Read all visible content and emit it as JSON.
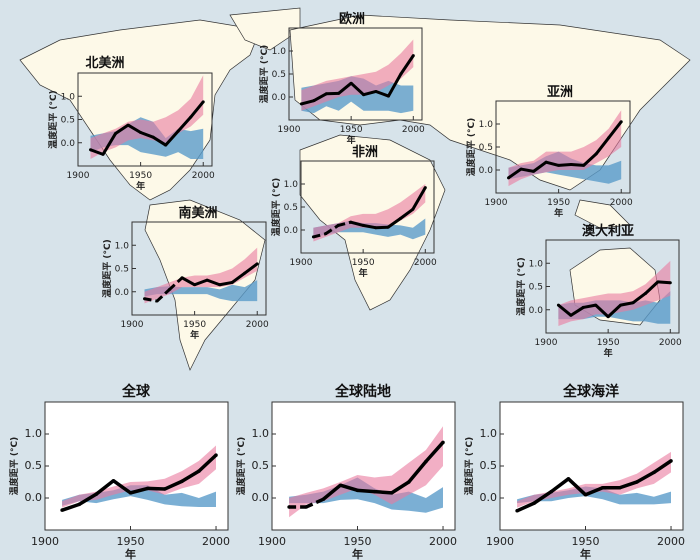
{
  "colors": {
    "ocean": "#d7e3ea",
    "land": "#fdf9e8",
    "observed": "#000000",
    "natural_band": "#5a9bc9",
    "natural_anthropogenic_band": "#e9799f"
  },
  "axis_common": {
    "x_ticks": [
      "1900",
      "1950",
      "2000"
    ],
    "y_ticks": [
      "0.0",
      "0.5",
      "1.0"
    ],
    "xlabel": "年",
    "ylabel": "温度距平 (°C)",
    "xlim": [
      1900,
      2007
    ],
    "ylim": [
      -0.5,
      1.5
    ]
  },
  "chart_data": [
    {
      "type": "line",
      "title": "北美洲",
      "x": [
        1910,
        1920,
        1930,
        1940,
        1950,
        1960,
        1970,
        1980,
        1990,
        2000
      ],
      "observed": [
        -0.15,
        -0.25,
        0.2,
        0.38,
        0.22,
        0.12,
        -0.05,
        0.25,
        0.55,
        0.88
      ],
      "observed_dashed_until": null,
      "pink_band": {
        "lower": [
          -0.35,
          -0.2,
          -0.1,
          0.05,
          0.1,
          0.05,
          0.0,
          0.2,
          0.35,
          0.6
        ],
        "upper": [
          0.1,
          0.2,
          0.3,
          0.45,
          0.5,
          0.45,
          0.55,
          0.7,
          0.95,
          1.45
        ]
      },
      "blue_band": {
        "lower": [
          -0.2,
          -0.1,
          -0.05,
          -0.05,
          -0.2,
          -0.25,
          -0.3,
          -0.2,
          -0.35,
          -0.35
        ],
        "upper": [
          0.15,
          0.2,
          0.25,
          0.4,
          0.55,
          0.45,
          0.1,
          0.3,
          0.25,
          0.3
        ]
      }
    },
    {
      "type": "line",
      "title": "欧洲",
      "x": [
        1910,
        1920,
        1930,
        1940,
        1950,
        1960,
        1970,
        1980,
        1990,
        2000
      ],
      "observed": [
        -0.15,
        -0.08,
        0.07,
        0.08,
        0.3,
        0.05,
        0.12,
        0.02,
        0.5,
        0.9
      ],
      "observed_dashed_until": null,
      "pink_band": {
        "lower": [
          -0.3,
          -0.2,
          -0.1,
          0.0,
          0.05,
          0.05,
          0.1,
          0.25,
          0.4,
          0.65
        ],
        "upper": [
          0.15,
          0.25,
          0.35,
          0.4,
          0.45,
          0.5,
          0.55,
          0.7,
          0.95,
          1.25
        ]
      },
      "blue_band": {
        "lower": [
          -0.3,
          -0.35,
          -0.2,
          -0.3,
          -0.1,
          -0.3,
          -0.3,
          -0.3,
          -0.35,
          -0.3
        ],
        "upper": [
          0.2,
          0.25,
          0.3,
          0.35,
          0.45,
          0.4,
          0.25,
          0.35,
          0.25,
          0.25
        ]
      }
    },
    {
      "type": "line",
      "title": "亚洲",
      "x": [
        1910,
        1920,
        1930,
        1940,
        1950,
        1960,
        1970,
        1980,
        1990,
        2000
      ],
      "observed": [
        -0.17,
        0.02,
        -0.03,
        0.17,
        0.1,
        0.12,
        0.1,
        0.35,
        0.7,
        1.05
      ],
      "observed_dashed_until": null,
      "pink_band": {
        "lower": [
          -0.35,
          -0.2,
          -0.1,
          -0.05,
          0.0,
          0.0,
          0.0,
          0.15,
          0.3,
          0.5
        ],
        "upper": [
          0.05,
          0.15,
          0.2,
          0.4,
          0.4,
          0.4,
          0.5,
          0.65,
          0.9,
          1.3
        ]
      },
      "blue_band": {
        "lower": [
          -0.2,
          -0.15,
          -0.1,
          -0.05,
          -0.1,
          -0.15,
          -0.2,
          -0.25,
          -0.3,
          -0.2
        ],
        "upper": [
          0.05,
          0.1,
          0.15,
          0.3,
          0.4,
          0.25,
          0.15,
          0.1,
          0.1,
          0.2
        ]
      }
    },
    {
      "type": "line",
      "title": "非洲",
      "x": [
        1910,
        1920,
        1930,
        1940,
        1950,
        1960,
        1970,
        1980,
        1990,
        2000
      ],
      "observed": [
        -0.15,
        -0.08,
        0.1,
        0.17,
        0.1,
        0.05,
        0.06,
        0.25,
        0.45,
        0.92
      ],
      "observed_dashed_until": 1940,
      "pink_band": {
        "lower": [
          -0.25,
          -0.15,
          -0.05,
          0.05,
          0.05,
          0.05,
          0.1,
          0.2,
          0.35,
          0.6
        ],
        "upper": [
          0.05,
          0.1,
          0.15,
          0.3,
          0.35,
          0.35,
          0.45,
          0.6,
          0.8,
          1.0
        ]
      },
      "blue_band": {
        "lower": [
          -0.15,
          -0.1,
          -0.05,
          -0.05,
          -0.05,
          -0.1,
          -0.15,
          -0.1,
          -0.2,
          -0.1
        ],
        "upper": [
          0.05,
          0.1,
          0.15,
          0.2,
          0.15,
          0.15,
          0.12,
          0.1,
          0.05,
          0.25
        ]
      }
    },
    {
      "type": "line",
      "title": "南美洲",
      "x": [
        1910,
        1920,
        1930,
        1940,
        1950,
        1960,
        1970,
        1980,
        1990,
        2000
      ],
      "observed": [
        -0.15,
        -0.2,
        0.05,
        0.3,
        0.15,
        0.25,
        0.15,
        0.2,
        0.4,
        0.6
      ],
      "observed_dashed_until": 1940,
      "pink_band": {
        "lower": [
          -0.25,
          -0.15,
          -0.05,
          0.1,
          0.1,
          0.1,
          0.1,
          0.15,
          0.3,
          0.45
        ],
        "upper": [
          0.0,
          0.1,
          0.2,
          0.3,
          0.35,
          0.35,
          0.4,
          0.5,
          0.7,
          0.95
        ]
      },
      "blue_band": {
        "lower": [
          -0.1,
          -0.05,
          -0.05,
          -0.05,
          -0.05,
          -0.05,
          -0.15,
          -0.2,
          -0.2,
          -0.2
        ],
        "upper": [
          0.05,
          0.1,
          0.12,
          0.1,
          0.1,
          0.1,
          0.05,
          0.15,
          0.1,
          0.25
        ]
      }
    },
    {
      "type": "line",
      "title": "澳大利亚",
      "x": [
        1910,
        1920,
        1930,
        1940,
        1950,
        1960,
        1970,
        1980,
        1990,
        2000
      ],
      "observed": [
        0.1,
        -0.12,
        0.05,
        0.1,
        -0.15,
        0.1,
        0.15,
        0.35,
        0.6,
        0.58
      ],
      "observed_dashed_until": null,
      "pink_band": {
        "lower": [
          -0.35,
          -0.25,
          -0.2,
          -0.1,
          -0.1,
          -0.05,
          0.0,
          0.1,
          0.2,
          0.3
        ],
        "upper": [
          0.1,
          0.2,
          0.25,
          0.3,
          0.35,
          0.35,
          0.4,
          0.55,
          0.8,
          1.05
        ]
      },
      "blue_band": {
        "lower": [
          -0.2,
          -0.2,
          -0.2,
          -0.15,
          -0.15,
          -0.2,
          -0.25,
          -0.25,
          -0.3,
          -0.3
        ],
        "upper": [
          0.1,
          0.15,
          0.15,
          0.2,
          0.2,
          0.2,
          0.15,
          0.2,
          0.15,
          0.4
        ]
      }
    },
    {
      "type": "line",
      "title": "全球",
      "x": [
        1910,
        1920,
        1930,
        1940,
        1950,
        1960,
        1970,
        1980,
        1990,
        2000
      ],
      "observed": [
        -0.19,
        -0.1,
        0.06,
        0.27,
        0.08,
        0.15,
        0.14,
        0.26,
        0.42,
        0.67
      ],
      "observed_dashed_until": null,
      "pink_band": {
        "lower": [
          -0.15,
          -0.05,
          -0.03,
          0.05,
          0.12,
          0.12,
          0.05,
          0.15,
          0.22,
          0.45
        ],
        "upper": [
          -0.05,
          0.05,
          0.1,
          0.18,
          0.25,
          0.26,
          0.3,
          0.42,
          0.58,
          0.82
        ]
      },
      "blue_band": {
        "lower": [
          -0.12,
          -0.05,
          -0.08,
          -0.02,
          0.03,
          -0.03,
          -0.1,
          -0.13,
          -0.14,
          -0.14
        ],
        "upper": [
          -0.03,
          0.05,
          0.08,
          0.12,
          0.2,
          0.2,
          0.05,
          0.08,
          0.0,
          0.1
        ]
      }
    },
    {
      "type": "line",
      "title": "全球陆地",
      "x": [
        1910,
        1920,
        1930,
        1940,
        1950,
        1960,
        1970,
        1980,
        1990,
        2000
      ],
      "observed": [
        -0.14,
        -0.14,
        -0.02,
        0.2,
        0.12,
        0.1,
        0.08,
        0.25,
        0.57,
        0.87
      ],
      "observed_dashed_until": 1930,
      "pink_band": {
        "lower": [
          -0.3,
          -0.1,
          -0.05,
          0.05,
          0.15,
          0.05,
          -0.1,
          0.05,
          0.2,
          0.5
        ],
        "upper": [
          0.0,
          0.08,
          0.15,
          0.25,
          0.36,
          0.32,
          0.35,
          0.55,
          0.75,
          1.12
        ]
      },
      "blue_band": {
        "lower": [
          -0.08,
          -0.08,
          -0.08,
          -0.03,
          -0.02,
          -0.08,
          -0.18,
          -0.2,
          -0.23,
          -0.15
        ],
        "upper": [
          0.02,
          0.05,
          0.1,
          0.2,
          0.32,
          0.15,
          0.05,
          0.1,
          0.0,
          0.17
        ]
      }
    },
    {
      "type": "line",
      "title": "全球海洋",
      "x": [
        1910,
        1920,
        1930,
        1940,
        1950,
        1960,
        1970,
        1980,
        1990,
        2000
      ],
      "observed": [
        -0.2,
        -0.08,
        0.1,
        0.3,
        0.05,
        0.16,
        0.16,
        0.25,
        0.4,
        0.58
      ],
      "observed_dashed_until": null,
      "pink_band": {
        "lower": [
          -0.15,
          -0.05,
          0.0,
          0.05,
          0.08,
          0.1,
          0.05,
          0.15,
          0.22,
          0.4
        ],
        "upper": [
          -0.05,
          0.05,
          0.1,
          0.15,
          0.22,
          0.22,
          0.28,
          0.38,
          0.55,
          0.72
        ]
      },
      "blue_band": {
        "lower": [
          -0.08,
          -0.05,
          -0.05,
          0.0,
          0.03,
          -0.02,
          -0.1,
          -0.1,
          -0.1,
          -0.08
        ],
        "upper": [
          -0.02,
          0.05,
          0.08,
          0.12,
          0.18,
          0.15,
          0.05,
          0.08,
          0.02,
          0.1
        ]
      }
    }
  ]
}
